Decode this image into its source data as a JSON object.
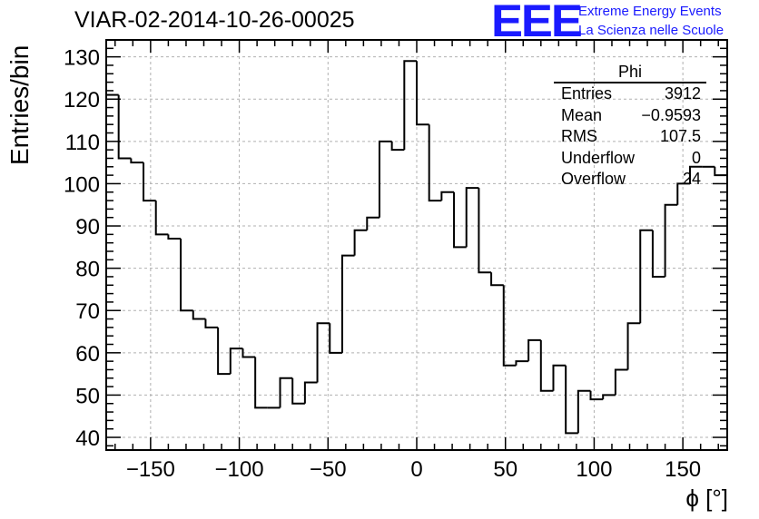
{
  "header": {
    "title": "VIAR-02-2014-10-26-00025",
    "logo_text": "EEE",
    "logo_line1": "Extreme Energy Events",
    "logo_line2": "La Scienza nelle Scuole"
  },
  "stats_box": {
    "name": "Phi",
    "rows": [
      {
        "label": "Entries",
        "value": "3912"
      },
      {
        "label": "Mean",
        "value": "−0.9593"
      },
      {
        "label": "RMS",
        "value": "107.5"
      },
      {
        "label": "Underflow",
        "value": "0"
      },
      {
        "label": "Overflow",
        "value": "24"
      }
    ]
  },
  "colors": {
    "line": "#000000",
    "grid": "#b0b0b0",
    "logo": "#1a1aff"
  },
  "chart_data": {
    "type": "histogram",
    "title": "VIAR-02-2014-10-26-00025",
    "xlabel": "ϕ [°]",
    "ylabel": "Entries/bin",
    "xlim": [
      -175,
      175
    ],
    "ylim": [
      37,
      134
    ],
    "xticks": [
      -150,
      -100,
      -50,
      0,
      50,
      100,
      150
    ],
    "yticks": [
      40,
      50,
      60,
      70,
      80,
      90,
      100,
      110,
      120,
      130
    ],
    "bin_width": 7,
    "bin_low_edges": [
      -175,
      -168,
      -161,
      -154,
      -147,
      -140,
      -133,
      -126,
      -119,
      -112,
      -105,
      -98,
      -91,
      -84,
      -77,
      -70,
      -63,
      -56,
      -49,
      -42,
      -35,
      -28,
      -21,
      -14,
      -7,
      0,
      7,
      14,
      21,
      28,
      35,
      42,
      49,
      56,
      63,
      70,
      77,
      84,
      91,
      98,
      105,
      112,
      119,
      126,
      133,
      140,
      147,
      154,
      161,
      168
    ],
    "values": [
      121,
      106,
      105,
      96,
      88,
      87,
      70,
      68,
      66,
      55,
      61,
      59,
      47,
      47,
      54,
      48,
      53,
      67,
      60,
      83,
      89,
      92,
      110,
      108,
      129,
      114,
      96,
      98,
      85,
      99,
      79,
      76,
      57,
      58,
      63,
      51,
      57,
      41,
      51,
      49,
      50,
      56,
      67,
      89,
      78,
      95,
      100,
      104,
      104,
      102
    ],
    "grid": true,
    "legend": "top-right"
  }
}
